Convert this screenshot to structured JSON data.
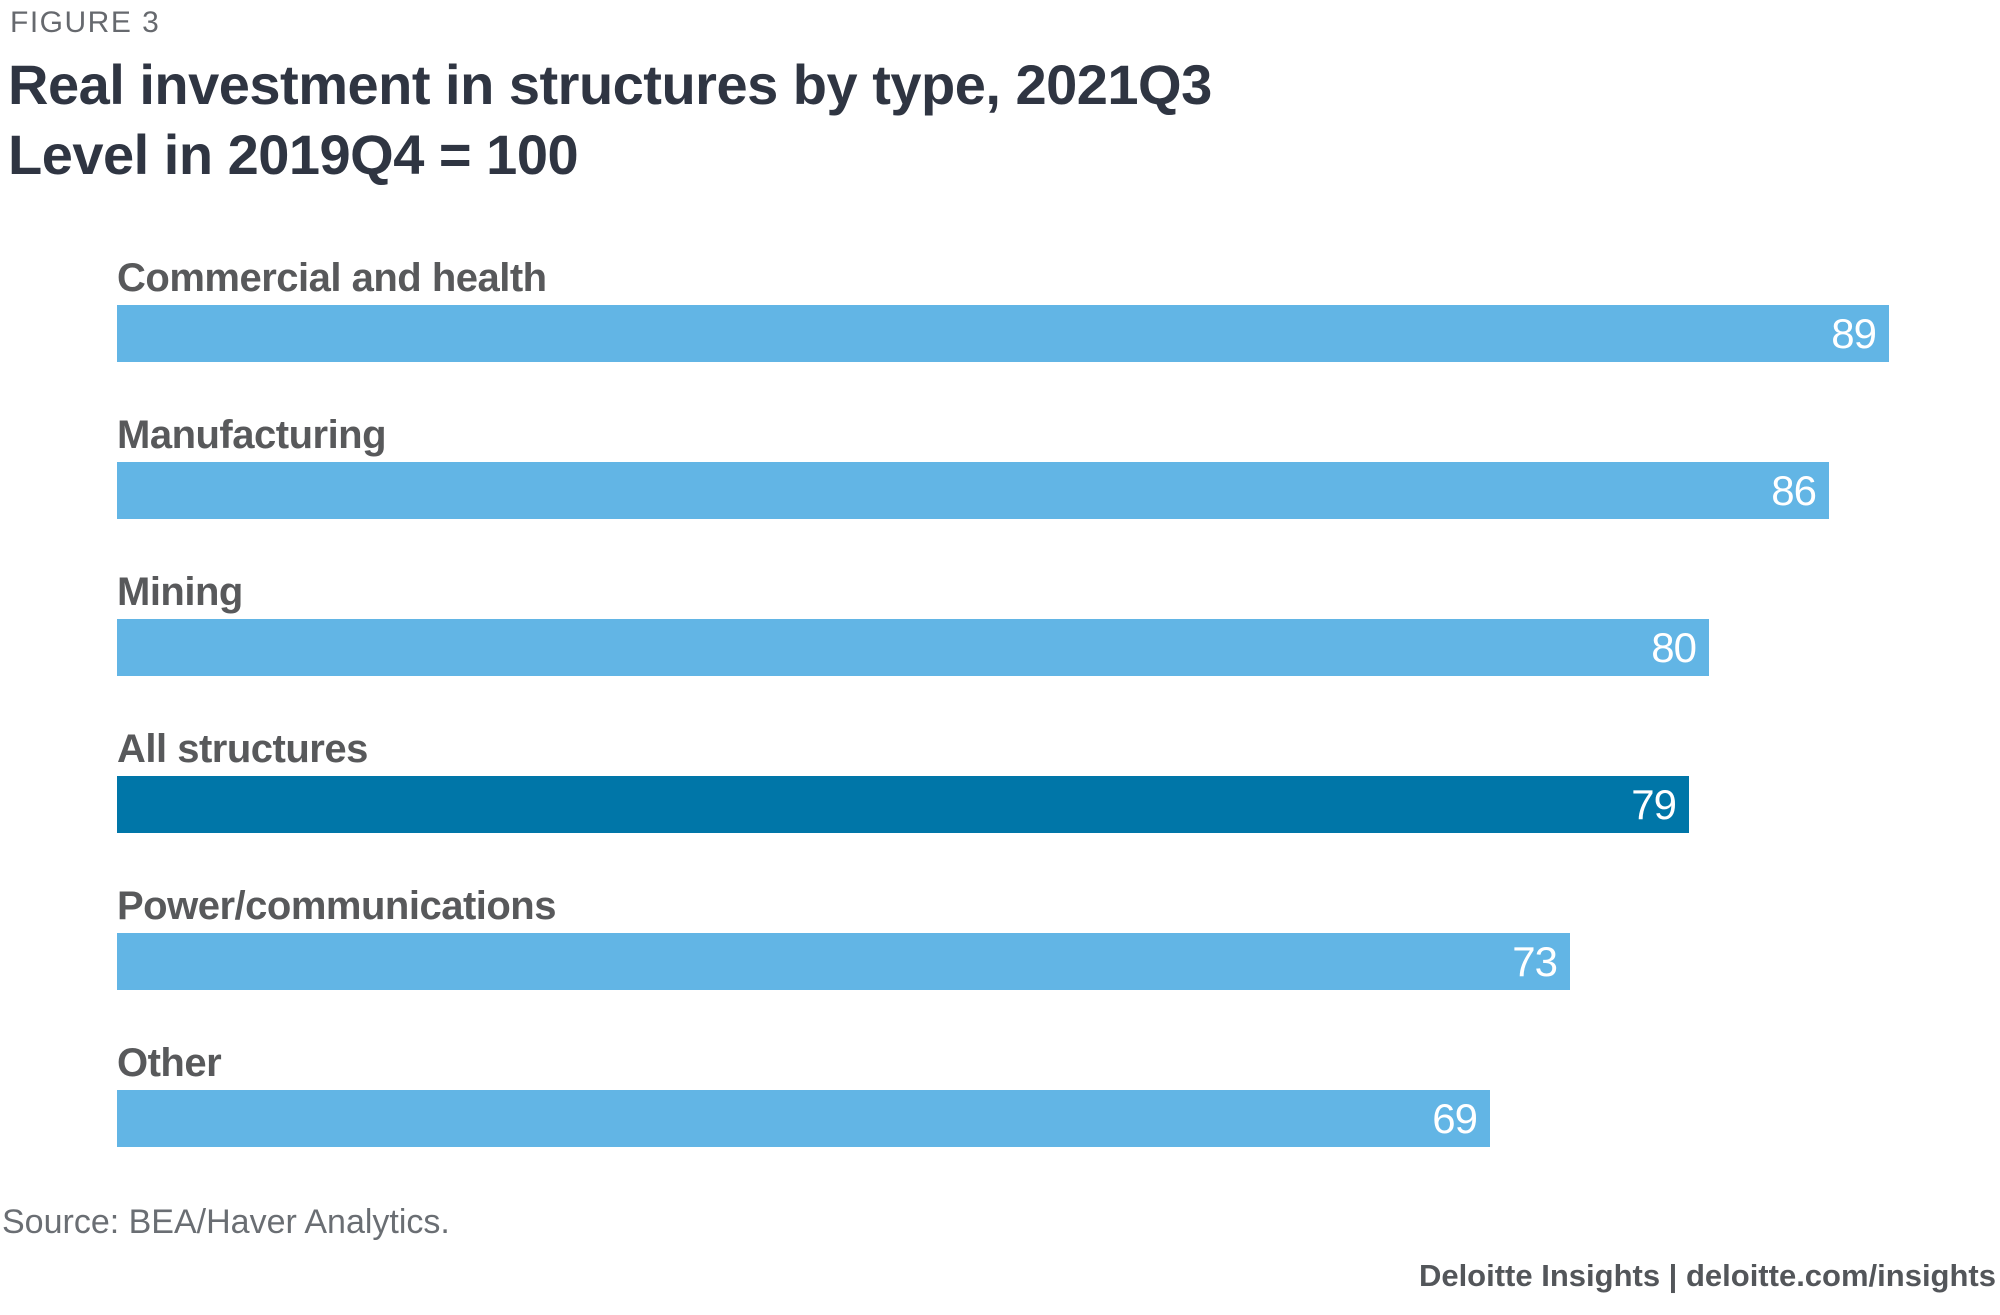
{
  "figure_label": "FIGURE 3",
  "title_line1": "Real investment in structures by type, 2021Q3",
  "title_line2": "Level in 2019Q4 = 100",
  "source_text": "Source: BEA/Haver Analytics.",
  "footer_text": "Deloitte Insights | deloitte.com/insights",
  "colors": {
    "bar_default": "#62B5E5",
    "bar_highlight": "#0076A8",
    "title_text": "#2F3542",
    "label_text": "#58595B",
    "value_text": "#FFFFFF",
    "figure_label_text": "#66696E",
    "source_text": "#6A6E73",
    "footer_text": "#53565A"
  },
  "chart_data": {
    "type": "bar",
    "orientation": "horizontal",
    "title": "Real investment in structures by type, 2021Q3",
    "subtitle": "Level in 2019Q4 = 100",
    "categories": [
      "Commercial and health",
      "Manufacturing",
      "Mining",
      "All structures",
      "Power/communications",
      "Other"
    ],
    "values": [
      89,
      86,
      80,
      79,
      73,
      69
    ],
    "highlight_category": "All structures",
    "value_labels_shown": true,
    "value_label_position": "inside-end",
    "xlim": [
      0,
      94.6
    ],
    "grid": false,
    "legend": "none",
    "axis_ticks_shown": false,
    "source": "Source: BEA/Haver Analytics.",
    "attribution": "Deloitte Insights | deloitte.com/insights"
  }
}
